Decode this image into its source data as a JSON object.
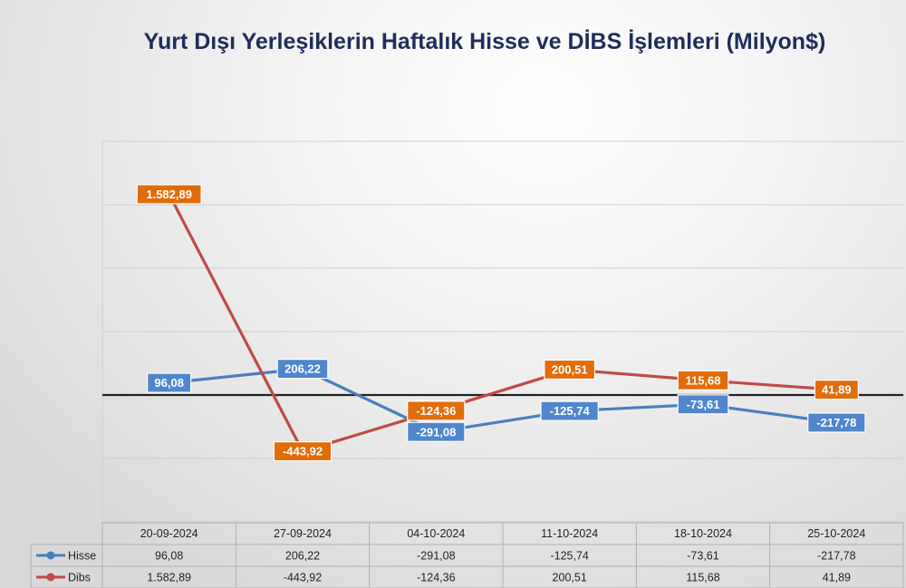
{
  "chart_data": {
    "type": "line",
    "title": "Yurt Dışı Yerleşiklerin Haftalık Hisse ve DİBS İşlemleri (Milyon$)",
    "categories": [
      "20-09-2024",
      "27-09-2024",
      "04-10-2024",
      "11-10-2024",
      "18-10-2024",
      "25-10-2024"
    ],
    "series": [
      {
        "name": "Hisse",
        "values": [
          96.08,
          206.22,
          -291.08,
          -125.74,
          -73.61,
          -217.78
        ],
        "labels": [
          "96,08",
          "206,22",
          "-291,08",
          "-125,74",
          "-73,61",
          "-217,78"
        ],
        "color": "#4a7ebb",
        "label_bg": "#4f86cc"
      },
      {
        "name": "Dibs",
        "values": [
          1582.89,
          -443.92,
          -124.36,
          200.51,
          115.68,
          41.89
        ],
        "labels": [
          "1.582,89",
          "-443,92",
          "-124,36",
          "200,51",
          "115,68",
          "41,89"
        ],
        "color": "#be4b48",
        "label_bg": "#e36c0a"
      }
    ],
    "ylim": [
      -1000,
      2000
    ],
    "gridlines": true,
    "legend": "data-table"
  }
}
